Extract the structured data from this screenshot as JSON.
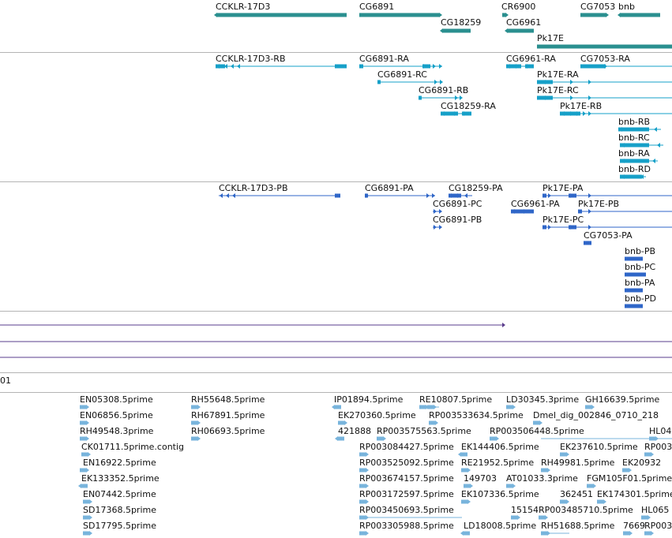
{
  "colors": {
    "gene": "#2a8f8f",
    "transcript": "#16a0c8",
    "protein": "#2f66c8",
    "line": "#5a3c8c",
    "est": "#78b4dc",
    "divider": "#b4b4b4"
  },
  "genes": [
    {
      "name": "CCKLR-17D3"
    },
    {
      "name": "CG6891"
    },
    {
      "name": "CR6900"
    },
    {
      "name": "CG7053"
    },
    {
      "name": "bnb"
    },
    {
      "name": "CG18259"
    },
    {
      "name": "CG6961"
    },
    {
      "name": "Pk17E"
    }
  ],
  "transcripts": [
    {
      "name": "CCKLR-17D3-RB"
    },
    {
      "name": "CG6891-RA"
    },
    {
      "name": "CG6961-RA"
    },
    {
      "name": "CG7053-RA"
    },
    {
      "name": "CG6891-RC"
    },
    {
      "name": "Pk17E-RA"
    },
    {
      "name": "CG6891-RB"
    },
    {
      "name": "Pk17E-RC"
    },
    {
      "name": "CG18259-RA"
    },
    {
      "name": "Pk17E-RB"
    },
    {
      "name": "bnb-RB"
    },
    {
      "name": "bnb-RC"
    },
    {
      "name": "bnb-RA"
    },
    {
      "name": "bnb-RD"
    }
  ],
  "proteins": [
    {
      "name": "CCKLR-17D3-PB"
    },
    {
      "name": "CG6891-PA"
    },
    {
      "name": "CG18259-PA"
    },
    {
      "name": "Pk17E-PA"
    },
    {
      "name": "CG6891-PC"
    },
    {
      "name": "CG6961-PA"
    },
    {
      "name": "Pk17E-PB"
    },
    {
      "name": "CG6891-PB"
    },
    {
      "name": "Pk17E-PC"
    },
    {
      "name": "CG7053-PA"
    },
    {
      "name": "bnb-PB"
    },
    {
      "name": "bnb-PC"
    },
    {
      "name": "bnb-PA"
    },
    {
      "name": "bnb-PD"
    }
  ],
  "region_label": "01",
  "ests": [
    {
      "name": "EN05308.5prime"
    },
    {
      "name": "RH55648.5prime"
    },
    {
      "name": "IP01894.5prime"
    },
    {
      "name": "RE10807.5prime"
    },
    {
      "name": "LD30345.3prime"
    },
    {
      "name": "GH16639.5prime"
    },
    {
      "name": "EN06856.5prime"
    },
    {
      "name": "RH67891.5prime"
    },
    {
      "name": "EK270360.5prime"
    },
    {
      "name": "RP003533634.5prime"
    },
    {
      "name": "Dmel_dig_002846_0710_218"
    },
    {
      "name": "RH49548.3prime"
    },
    {
      "name": "RH06693.5prime"
    },
    {
      "name": "421888"
    },
    {
      "name": "RP003575563.5prime"
    },
    {
      "name": "RP003506448.5prime"
    },
    {
      "name": "HL04"
    },
    {
      "name": "CK01711.5prime.contig"
    },
    {
      "name": "RP003084427.5prime"
    },
    {
      "name": "EK144406.5prime"
    },
    {
      "name": "EK237610.5prime"
    },
    {
      "name": "RP003"
    },
    {
      "name": "EN16922.5prime"
    },
    {
      "name": "RP003525092.5prime"
    },
    {
      "name": "RE21952.5prime"
    },
    {
      "name": "RH49981.5prime"
    },
    {
      "name": "EK20932"
    },
    {
      "name": "EK133352.5prime"
    },
    {
      "name": "RP003674157.5prime"
    },
    {
      "name": "149703"
    },
    {
      "name": "AT01033.3prime"
    },
    {
      "name": "FGM105F01.5prime"
    },
    {
      "name": "EN07442.5prime"
    },
    {
      "name": "RP003172597.5prime"
    },
    {
      "name": "EK107336.5prime"
    },
    {
      "name": "362451"
    },
    {
      "name": "EK174301.5prime"
    },
    {
      "name": "SD17368.5prime"
    },
    {
      "name": "RP003450693.5prime"
    },
    {
      "name": "15154"
    },
    {
      "name": "RP003485710.5prime"
    },
    {
      "name": "HL065"
    },
    {
      "name": "SD17795.5prime"
    },
    {
      "name": "RP003305988.5prime"
    },
    {
      "name": "LD18008.5prime"
    },
    {
      "name": "RH51688.5prime"
    },
    {
      "name": "7669"
    },
    {
      "name": "RP003"
    }
  ]
}
